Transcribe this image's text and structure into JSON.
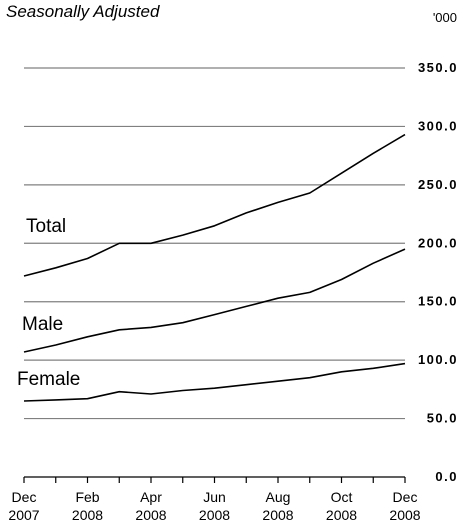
{
  "chart_data": {
    "type": "line",
    "subtitle": "Seasonally Adjusted",
    "unit_label": "'000",
    "x": [
      "Dec 2007",
      "Jan 2008",
      "Feb 2008",
      "Mar 2008",
      "Apr 2008",
      "May 2008",
      "Jun 2008",
      "Jul 2008",
      "Aug 2008",
      "Sep 2008",
      "Oct 2008",
      "Nov 2008",
      "Dec 2008"
    ],
    "x_tick_labels": [
      {
        "month": "Dec",
        "year": "2007",
        "index": 0
      },
      {
        "month": "Feb",
        "year": "2008",
        "index": 2
      },
      {
        "month": "Apr",
        "year": "2008",
        "index": 4
      },
      {
        "month": "Jun",
        "year": "2008",
        "index": 6
      },
      {
        "month": "Aug",
        "year": "2008",
        "index": 8
      },
      {
        "month": "Oct",
        "year": "2008",
        "index": 10
      },
      {
        "month": "Dec",
        "year": "2008",
        "index": 12
      }
    ],
    "y_tick_labels": [
      "0.0",
      "50.0",
      "100.0",
      "150.0",
      "200.0",
      "250.0",
      "300.0",
      "350.0"
    ],
    "y_ticks": [
      0,
      50,
      100,
      150,
      200,
      250,
      300,
      350
    ],
    "ylim": [
      0,
      360
    ],
    "grid": true,
    "y_axis_side": "right",
    "series": [
      {
        "name": "Total",
        "values": [
          172,
          179,
          187,
          200,
          200,
          207,
          215,
          226,
          235,
          243,
          260,
          277,
          293
        ]
      },
      {
        "name": "Male",
        "values": [
          107,
          113,
          120,
          126,
          128,
          132,
          139,
          146,
          153,
          158,
          169,
          183,
          195
        ]
      },
      {
        "name": "Female",
        "values": [
          65,
          66,
          67,
          73,
          71,
          74,
          76,
          79,
          82,
          85,
          90,
          93,
          97
        ]
      }
    ],
    "colors": {
      "line": "#000000",
      "grid": "#808080",
      "axis": "#000000"
    }
  }
}
